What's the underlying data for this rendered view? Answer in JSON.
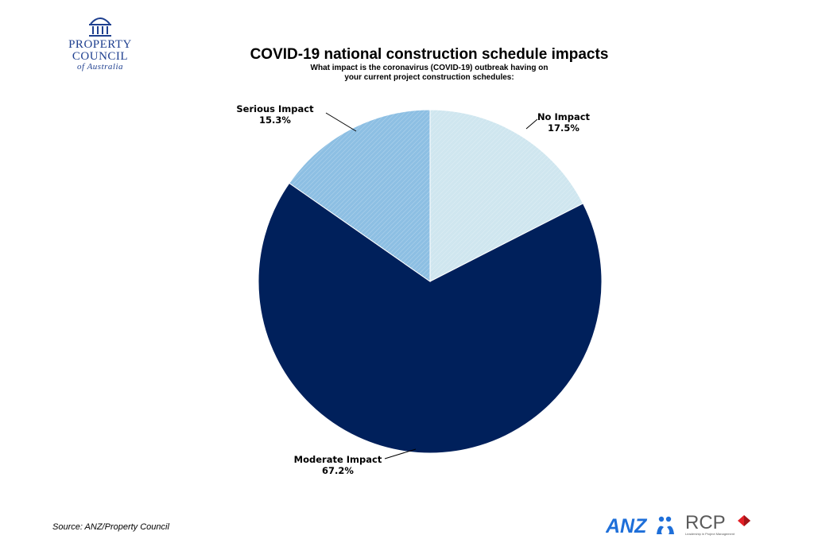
{
  "brand": {
    "property_council_line1": "PROPERTY",
    "property_council_line2": "COUNCIL",
    "property_council_line3": "of Australia",
    "anz": "ANZ",
    "rcp": "RCP",
    "rcp_tagline": "Leadership in Project Management"
  },
  "source": "Source: ANZ/Property Council",
  "colors": {
    "no_impact": "#cfe6ef",
    "moderate_impact": "#00205b",
    "serious_impact": "#8dbfe3",
    "logo_blue": "#1e3f8f",
    "rcp_red": "#e31f26"
  },
  "chart_data": {
    "type": "pie",
    "title": "COVID-19 national construction schedule impacts",
    "subtitle": [
      "What impact is the coronavirus (COVID-19) outbreak having on",
      "your current project construction schedules:"
    ],
    "slices": [
      {
        "label": "No Impact",
        "value": 17.5,
        "display": "17.5%",
        "color": "#cfe6ef"
      },
      {
        "label": "Moderate Impact",
        "value": 67.2,
        "display": "67.2%",
        "color": "#00205b"
      },
      {
        "label": "Serious Impact",
        "value": 15.3,
        "display": "15.3%",
        "color": "#8dbfe3"
      }
    ],
    "start": "12 o'clock, clockwise"
  }
}
